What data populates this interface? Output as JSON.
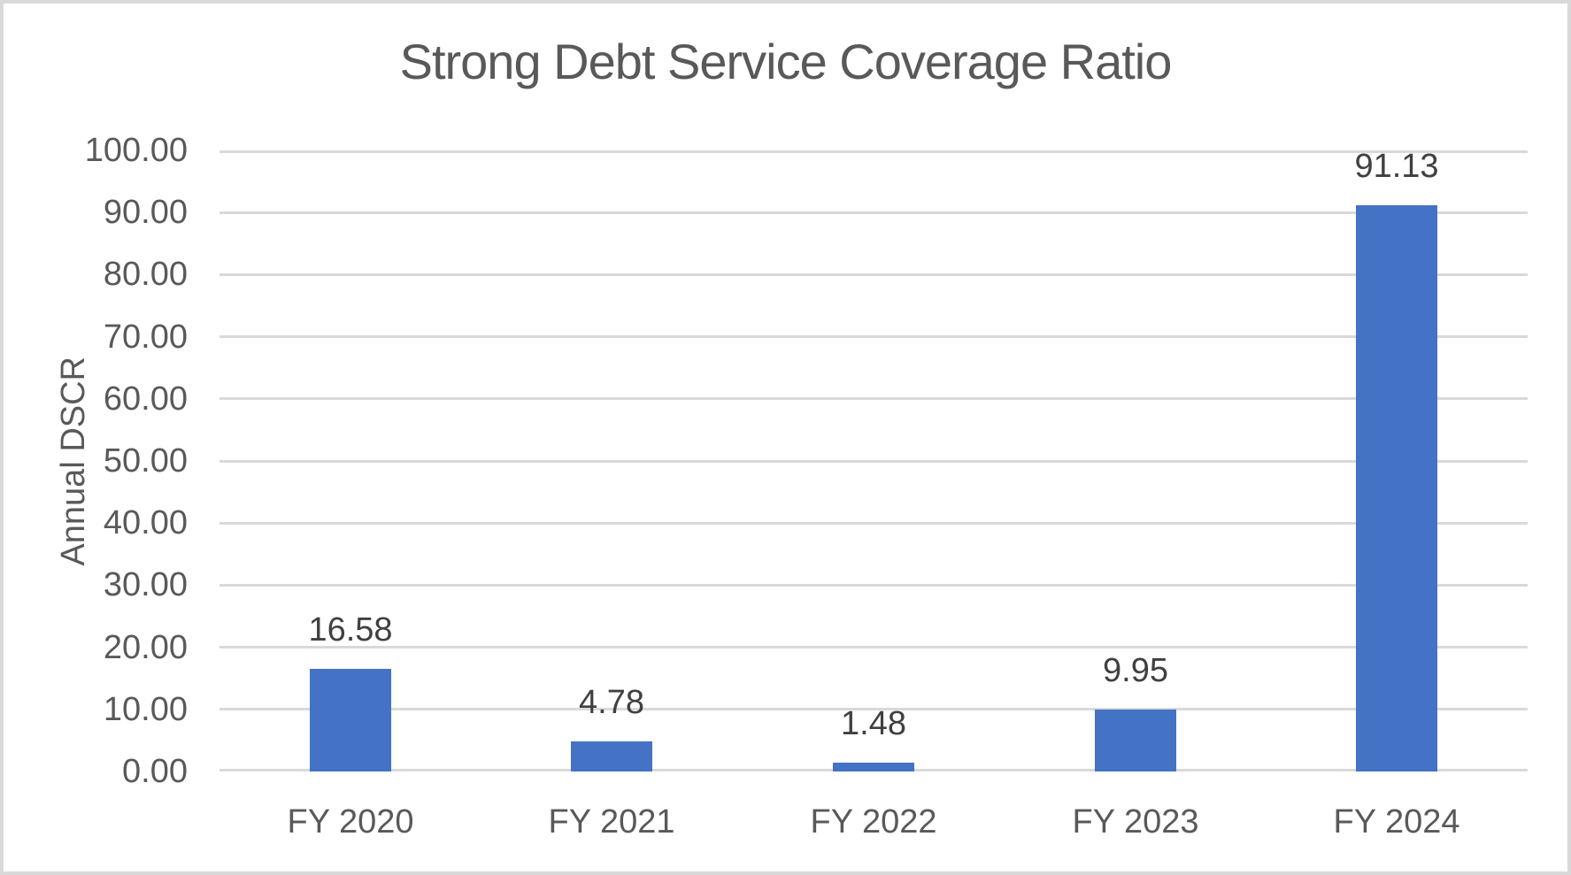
{
  "chart_data": {
    "type": "bar",
    "title": "Strong Debt Service Coverage Ratio",
    "xlabel": "",
    "ylabel": "Annual DSCR",
    "categories": [
      "FY 2020",
      "FY 2021",
      "FY 2022",
      "FY 2023",
      "FY 2024"
    ],
    "values": [
      16.58,
      4.78,
      1.48,
      9.95,
      91.13
    ],
    "data_labels": [
      "16.58",
      "4.78",
      "1.48",
      "9.95",
      "91.13"
    ],
    "ylim": [
      0,
      100
    ],
    "ytick_step": 10,
    "ytick_labels": [
      "0.00",
      "10.00",
      "20.00",
      "30.00",
      "40.00",
      "50.00",
      "60.00",
      "70.00",
      "80.00",
      "90.00",
      "100.00"
    ],
    "grid": true,
    "legend": "none",
    "colors": {
      "bar": "#4472C4",
      "gridline": "#D9D9D9",
      "axis_text": "#595959",
      "data_label_text": "#404040",
      "title_text": "#595959",
      "frame_border": "#D9D9D9",
      "background": "#FFFFFF"
    }
  }
}
